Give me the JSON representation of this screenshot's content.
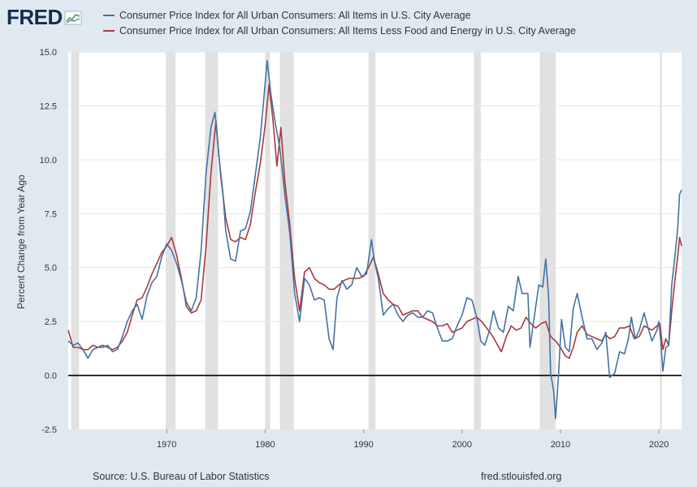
{
  "logo": {
    "text": "FRED",
    "icon": "trend-graph-icon"
  },
  "footer": {
    "source": "Source: U.S. Bureau of Labor Statistics",
    "site": "fred.stlouisfed.org"
  },
  "colors": {
    "background": "#e1e9f0",
    "plot_bg": "#ffffff",
    "recession": "#e1e1e1",
    "zero_line": "#000000"
  },
  "chart_data": {
    "type": "line",
    "title": "",
    "xlabel": "",
    "ylabel": "Percent Change from Year Ago",
    "xlim": [
      1960.0,
      2022.3
    ],
    "ylim": [
      -2.5,
      15.0
    ],
    "yticks": [
      -2.5,
      0.0,
      2.5,
      5.0,
      7.5,
      10.0,
      12.5,
      15.0
    ],
    "ytick_labels": [
      "-2.5",
      "0.0",
      "2.5",
      "5.0",
      "7.5",
      "10.0",
      "12.5",
      "15.0"
    ],
    "xticks": [
      1970,
      1980,
      1990,
      2000,
      2010,
      2020
    ],
    "xtick_labels": [
      "1970",
      "1980",
      "1990",
      "2000",
      "2010",
      "2020"
    ],
    "grid": "horizontal",
    "legend_position": "top",
    "recessions": [
      [
        1960.3,
        1961.1
      ],
      [
        1969.9,
        1970.9
      ],
      [
        1973.9,
        1975.2
      ],
      [
        1980.0,
        1980.5
      ],
      [
        1981.5,
        1982.9
      ],
      [
        1990.5,
        1991.2
      ],
      [
        2001.2,
        2001.9
      ],
      [
        2007.9,
        2009.5
      ],
      [
        2020.1,
        2020.3
      ]
    ],
    "series": [
      {
        "name": "Consumer Price Index for All Urban Consumers: All Items in U.S. City Average",
        "color": "#4572a7",
        "points": [
          [
            1960.0,
            1.6
          ],
          [
            1960.5,
            1.4
          ],
          [
            1961.0,
            1.5
          ],
          [
            1961.5,
            1.2
          ],
          [
            1962.0,
            0.8
          ],
          [
            1962.5,
            1.2
          ],
          [
            1963.0,
            1.3
          ],
          [
            1963.5,
            1.3
          ],
          [
            1964.0,
            1.4
          ],
          [
            1964.5,
            1.1
          ],
          [
            1965.0,
            1.2
          ],
          [
            1965.5,
            1.8
          ],
          [
            1966.0,
            2.5
          ],
          [
            1966.5,
            3.0
          ],
          [
            1967.0,
            3.3
          ],
          [
            1967.5,
            2.6
          ],
          [
            1968.0,
            3.7
          ],
          [
            1968.5,
            4.3
          ],
          [
            1969.0,
            4.6
          ],
          [
            1969.5,
            5.5
          ],
          [
            1970.0,
            6.1
          ],
          [
            1970.5,
            5.8
          ],
          [
            1971.0,
            5.2
          ],
          [
            1971.5,
            4.4
          ],
          [
            1972.0,
            3.4
          ],
          [
            1972.5,
            3.0
          ],
          [
            1973.0,
            3.6
          ],
          [
            1973.5,
            5.8
          ],
          [
            1974.0,
            9.4
          ],
          [
            1974.5,
            11.5
          ],
          [
            1974.9,
            12.2
          ],
          [
            1975.3,
            10.2
          ],
          [
            1975.7,
            8.5
          ],
          [
            1976.0,
            6.7
          ],
          [
            1976.5,
            5.4
          ],
          [
            1977.0,
            5.3
          ],
          [
            1977.5,
            6.7
          ],
          [
            1978.0,
            6.8
          ],
          [
            1978.5,
            7.6
          ],
          [
            1979.0,
            9.3
          ],
          [
            1979.5,
            11.0
          ],
          [
            1979.8,
            12.5
          ],
          [
            1980.2,
            14.6
          ],
          [
            1980.6,
            13.0
          ],
          [
            1981.0,
            11.8
          ],
          [
            1981.5,
            10.5
          ],
          [
            1982.0,
            8.4
          ],
          [
            1982.5,
            6.6
          ],
          [
            1983.0,
            3.8
          ],
          [
            1983.5,
            2.5
          ],
          [
            1984.0,
            4.5
          ],
          [
            1984.5,
            4.2
          ],
          [
            1985.0,
            3.5
          ],
          [
            1985.5,
            3.6
          ],
          [
            1986.0,
            3.5
          ],
          [
            1986.5,
            1.7
          ],
          [
            1986.9,
            1.2
          ],
          [
            1987.3,
            3.6
          ],
          [
            1987.8,
            4.4
          ],
          [
            1988.3,
            4.0
          ],
          [
            1988.8,
            4.2
          ],
          [
            1989.3,
            5.0
          ],
          [
            1989.8,
            4.6
          ],
          [
            1990.3,
            4.7
          ],
          [
            1990.8,
            6.3
          ],
          [
            1991.1,
            5.3
          ],
          [
            1991.5,
            4.5
          ],
          [
            1992.0,
            2.8
          ],
          [
            1992.5,
            3.1
          ],
          [
            1993.0,
            3.3
          ],
          [
            1993.5,
            2.8
          ],
          [
            1994.0,
            2.5
          ],
          [
            1994.5,
            2.8
          ],
          [
            1995.0,
            2.9
          ],
          [
            1995.5,
            2.7
          ],
          [
            1996.0,
            2.7
          ],
          [
            1996.5,
            3.0
          ],
          [
            1997.0,
            2.9
          ],
          [
            1997.5,
            2.2
          ],
          [
            1998.0,
            1.6
          ],
          [
            1998.5,
            1.6
          ],
          [
            1999.0,
            1.7
          ],
          [
            1999.5,
            2.3
          ],
          [
            2000.0,
            2.8
          ],
          [
            2000.5,
            3.6
          ],
          [
            2001.0,
            3.5
          ],
          [
            2001.5,
            2.7
          ],
          [
            2001.9,
            1.6
          ],
          [
            2002.3,
            1.4
          ],
          [
            2002.8,
            2.1
          ],
          [
            2003.2,
            3.0
          ],
          [
            2003.7,
            2.2
          ],
          [
            2004.2,
            2.0
          ],
          [
            2004.7,
            3.2
          ],
          [
            2005.2,
            3.0
          ],
          [
            2005.7,
            4.6
          ],
          [
            2006.1,
            3.8
          ],
          [
            2006.7,
            3.8
          ],
          [
            2006.9,
            1.3
          ],
          [
            2007.3,
            2.6
          ],
          [
            2007.8,
            4.2
          ],
          [
            2008.2,
            4.1
          ],
          [
            2008.5,
            5.4
          ],
          [
            2008.8,
            3.6
          ],
          [
            2009.0,
            0.1
          ],
          [
            2009.3,
            -0.7
          ],
          [
            2009.5,
            -2.0
          ],
          [
            2009.8,
            0.0
          ],
          [
            2010.1,
            2.6
          ],
          [
            2010.5,
            1.3
          ],
          [
            2010.9,
            1.1
          ],
          [
            2011.3,
            3.1
          ],
          [
            2011.7,
            3.8
          ],
          [
            2012.2,
            2.7
          ],
          [
            2012.7,
            1.7
          ],
          [
            2013.2,
            1.7
          ],
          [
            2013.7,
            1.2
          ],
          [
            2014.2,
            1.5
          ],
          [
            2014.6,
            2.0
          ],
          [
            2015.0,
            -0.1
          ],
          [
            2015.5,
            0.1
          ],
          [
            2016.0,
            1.1
          ],
          [
            2016.5,
            1.0
          ],
          [
            2016.9,
            1.7
          ],
          [
            2017.2,
            2.7
          ],
          [
            2017.6,
            1.7
          ],
          [
            2018.0,
            2.1
          ],
          [
            2018.5,
            2.9
          ],
          [
            2018.9,
            2.2
          ],
          [
            2019.3,
            1.6
          ],
          [
            2019.8,
            2.1
          ],
          [
            2020.0,
            2.5
          ],
          [
            2020.2,
            1.5
          ],
          [
            2020.4,
            0.2
          ],
          [
            2020.7,
            1.3
          ],
          [
            2021.0,
            1.4
          ],
          [
            2021.3,
            4.2
          ],
          [
            2021.6,
            5.4
          ],
          [
            2021.9,
            6.8
          ],
          [
            2022.1,
            8.4
          ],
          [
            2022.3,
            8.6
          ]
        ]
      },
      {
        "name": "Consumer Price Index for All Urban Consumers: All Items Less Food and Energy in U.S. City Average",
        "color": "#aa3a39",
        "points": [
          [
            1960.0,
            2.1
          ],
          [
            1960.5,
            1.3
          ],
          [
            1961.0,
            1.3
          ],
          [
            1961.5,
            1.2
          ],
          [
            1962.0,
            1.2
          ],
          [
            1962.5,
            1.4
          ],
          [
            1963.0,
            1.3
          ],
          [
            1963.5,
            1.4
          ],
          [
            1964.0,
            1.3
          ],
          [
            1964.5,
            1.2
          ],
          [
            1965.0,
            1.3
          ],
          [
            1965.5,
            1.6
          ],
          [
            1966.0,
            2.0
          ],
          [
            1966.5,
            2.8
          ],
          [
            1967.0,
            3.5
          ],
          [
            1967.5,
            3.6
          ],
          [
            1968.0,
            4.1
          ],
          [
            1968.5,
            4.7
          ],
          [
            1969.0,
            5.2
          ],
          [
            1969.5,
            5.7
          ],
          [
            1970.0,
            6.0
          ],
          [
            1970.5,
            6.4
          ],
          [
            1971.0,
            5.6
          ],
          [
            1971.5,
            4.5
          ],
          [
            1972.0,
            3.2
          ],
          [
            1972.5,
            2.9
          ],
          [
            1973.0,
            3.0
          ],
          [
            1973.5,
            3.5
          ],
          [
            1974.0,
            6.0
          ],
          [
            1974.5,
            9.4
          ],
          [
            1975.0,
            11.8
          ],
          [
            1975.5,
            9.2
          ],
          [
            1976.0,
            7.3
          ],
          [
            1976.5,
            6.3
          ],
          [
            1977.0,
            6.2
          ],
          [
            1977.5,
            6.4
          ],
          [
            1978.0,
            6.3
          ],
          [
            1978.5,
            7.0
          ],
          [
            1979.0,
            8.5
          ],
          [
            1979.5,
            9.8
          ],
          [
            1980.0,
            11.6
          ],
          [
            1980.4,
            13.5
          ],
          [
            1980.8,
            11.8
          ],
          [
            1981.2,
            9.7
          ],
          [
            1981.6,
            11.5
          ],
          [
            1982.0,
            9.0
          ],
          [
            1982.5,
            7.0
          ],
          [
            1983.0,
            4.5
          ],
          [
            1983.5,
            3.0
          ],
          [
            1984.0,
            4.8
          ],
          [
            1984.5,
            5.0
          ],
          [
            1985.0,
            4.5
          ],
          [
            1985.5,
            4.3
          ],
          [
            1986.0,
            4.2
          ],
          [
            1986.5,
            4.0
          ],
          [
            1987.0,
            4.0
          ],
          [
            1987.5,
            4.2
          ],
          [
            1988.0,
            4.4
          ],
          [
            1988.5,
            4.5
          ],
          [
            1989.0,
            4.5
          ],
          [
            1989.5,
            4.5
          ],
          [
            1990.0,
            4.6
          ],
          [
            1990.5,
            5.0
          ],
          [
            1991.0,
            5.5
          ],
          [
            1991.5,
            4.7
          ],
          [
            1992.0,
            3.8
          ],
          [
            1992.5,
            3.5
          ],
          [
            1993.0,
            3.3
          ],
          [
            1993.5,
            3.2
          ],
          [
            1994.0,
            2.8
          ],
          [
            1994.5,
            2.9
          ],
          [
            1995.0,
            3.0
          ],
          [
            1995.5,
            3.0
          ],
          [
            1996.0,
            2.7
          ],
          [
            1996.5,
            2.6
          ],
          [
            1997.0,
            2.5
          ],
          [
            1997.5,
            2.3
          ],
          [
            1998.0,
            2.3
          ],
          [
            1998.5,
            2.4
          ],
          [
            1999.0,
            2.0
          ],
          [
            1999.5,
            2.1
          ],
          [
            2000.0,
            2.2
          ],
          [
            2000.5,
            2.5
          ],
          [
            2001.0,
            2.6
          ],
          [
            2001.5,
            2.7
          ],
          [
            2002.0,
            2.5
          ],
          [
            2002.5,
            2.2
          ],
          [
            2003.0,
            1.9
          ],
          [
            2003.5,
            1.5
          ],
          [
            2004.0,
            1.1
          ],
          [
            2004.5,
            1.8
          ],
          [
            2005.0,
            2.3
          ],
          [
            2005.5,
            2.1
          ],
          [
            2006.0,
            2.2
          ],
          [
            2006.5,
            2.7
          ],
          [
            2007.0,
            2.4
          ],
          [
            2007.5,
            2.2
          ],
          [
            2008.0,
            2.4
          ],
          [
            2008.5,
            2.5
          ],
          [
            2009.0,
            1.8
          ],
          [
            2009.5,
            1.6
          ],
          [
            2010.0,
            1.3
          ],
          [
            2010.5,
            0.9
          ],
          [
            2010.9,
            0.8
          ],
          [
            2011.3,
            1.3
          ],
          [
            2011.7,
            2.0
          ],
          [
            2012.2,
            2.3
          ],
          [
            2012.7,
            1.9
          ],
          [
            2013.2,
            1.8
          ],
          [
            2013.7,
            1.7
          ],
          [
            2014.2,
            1.6
          ],
          [
            2014.6,
            1.9
          ],
          [
            2015.0,
            1.7
          ],
          [
            2015.5,
            1.8
          ],
          [
            2016.0,
            2.2
          ],
          [
            2016.5,
            2.2
          ],
          [
            2017.0,
            2.3
          ],
          [
            2017.5,
            1.7
          ],
          [
            2018.0,
            1.8
          ],
          [
            2018.5,
            2.3
          ],
          [
            2018.9,
            2.2
          ],
          [
            2019.3,
            2.1
          ],
          [
            2019.8,
            2.3
          ],
          [
            2020.1,
            2.4
          ],
          [
            2020.4,
            1.2
          ],
          [
            2020.7,
            1.7
          ],
          [
            2021.0,
            1.4
          ],
          [
            2021.3,
            3.0
          ],
          [
            2021.6,
            4.3
          ],
          [
            2021.9,
            5.5
          ],
          [
            2022.1,
            6.4
          ],
          [
            2022.3,
            6.0
          ]
        ]
      }
    ]
  }
}
